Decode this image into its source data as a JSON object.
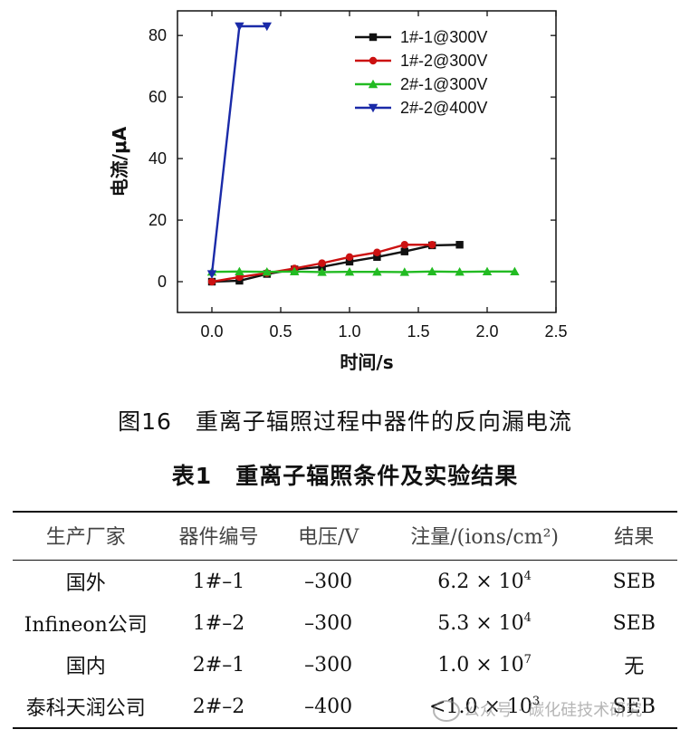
{
  "chart_data": {
    "type": "line",
    "xlabel": "时间/s",
    "ylabel": "电流/μA",
    "xlim": [
      -0.25,
      2.5
    ],
    "ylim": [
      -10,
      88
    ],
    "xticks": [
      0.0,
      0.5,
      1.0,
      1.5,
      2.0,
      2.5
    ],
    "xtick_labels": [
      "0.0",
      "0.5",
      "1.0",
      "1.5",
      "2.0",
      "2.5"
    ],
    "yticks": [
      0,
      20,
      40,
      60,
      80
    ],
    "ytick_labels": [
      "0",
      "20",
      "40",
      "60",
      "80"
    ],
    "legend_position": "top-right",
    "series": [
      {
        "name": "1#-1@300V",
        "color": "#111111",
        "marker": "square",
        "x": [
          0.0,
          0.2,
          0.4,
          0.6,
          0.8,
          1.0,
          1.2,
          1.4,
          1.6,
          1.8
        ],
        "y": [
          0.0,
          0.3,
          2.5,
          4.0,
          4.8,
          6.5,
          8.0,
          9.8,
          11.8,
          12.0
        ]
      },
      {
        "name": "1#-2@300V",
        "color": "#cc1111",
        "marker": "circle",
        "x": [
          0.0,
          0.2,
          0.4,
          0.6,
          0.8,
          1.0,
          1.2,
          1.4,
          1.6
        ],
        "y": [
          0.0,
          1.5,
          2.8,
          4.3,
          6.0,
          8.0,
          9.5,
          12.0,
          12.0
        ]
      },
      {
        "name": "2#-1@300V",
        "color": "#22bb22",
        "marker": "triangle-up",
        "x": [
          0.0,
          0.2,
          0.4,
          0.6,
          0.8,
          1.0,
          1.2,
          1.4,
          1.6,
          1.8,
          2.0,
          2.2
        ],
        "y": [
          3.2,
          3.3,
          3.2,
          3.3,
          3.1,
          3.2,
          3.2,
          3.1,
          3.3,
          3.2,
          3.3,
          3.3
        ]
      },
      {
        "name": "2#-2@400V",
        "color": "#1a2aa8",
        "marker": "triangle-down",
        "x": [
          0.0,
          0.2,
          0.4
        ],
        "y": [
          2.5,
          83.0,
          83.0
        ]
      }
    ]
  },
  "figure_caption": {
    "number": "图16",
    "text": "重离子辐照过程中器件的反向漏电流"
  },
  "table_caption": {
    "number": "表1",
    "text": "重离子辐照条件及实验结果"
  },
  "table": {
    "headers": [
      "生产厂家",
      "器件编号",
      "电压/V",
      "注量/(ions/cm²)",
      "结果"
    ],
    "rows": [
      {
        "maker": "国外",
        "device": "1#–1",
        "voltage": "–300",
        "fluence_base": "6.2 × 10",
        "fluence_exp": "4",
        "result": "SEB"
      },
      {
        "maker": "Infineon公司",
        "device": "1#–2",
        "voltage": "–300",
        "fluence_base": "5.3 × 10",
        "fluence_exp": "4",
        "result": "SEB"
      },
      {
        "maker": "国内",
        "device": "2#–1",
        "voltage": "–300",
        "fluence_base": "1.0 × 10",
        "fluence_exp": "7",
        "result": "无"
      },
      {
        "maker": "泰科天润公司",
        "device": "2#–2",
        "voltage": "–400",
        "fluence_base": "<1.0 × 10",
        "fluence_exp": "3",
        "result": "SEB"
      }
    ]
  },
  "watermark": "公众号 · 碳化硅技术研究"
}
